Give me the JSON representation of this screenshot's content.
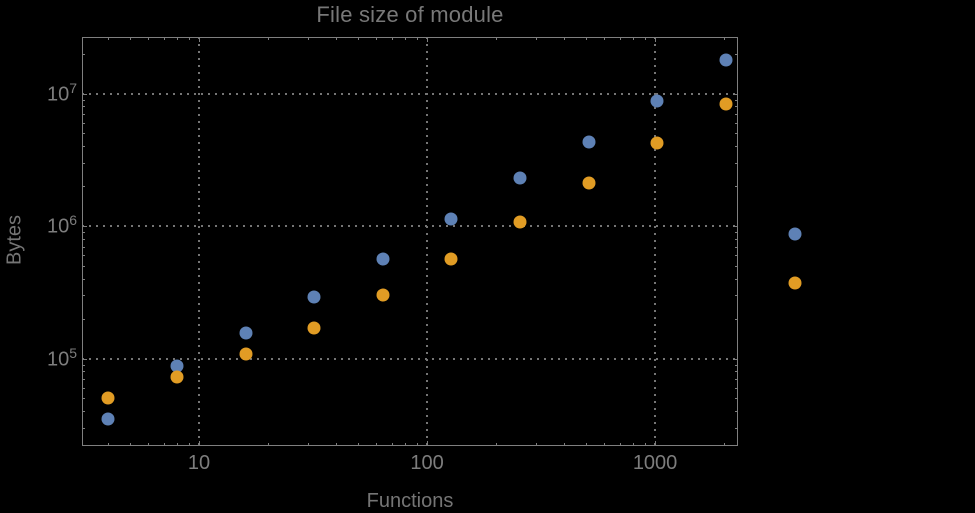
{
  "chart_data": {
    "type": "scatter",
    "title": "File size of module",
    "xlabel": "Functions",
    "ylabel": "Bytes",
    "x_scale": "log",
    "y_scale": "log",
    "xlim": [
      3.07,
      2310
    ],
    "ylim": [
      21900,
      26700000
    ],
    "x_major_ticks": [
      10,
      100,
      1000
    ],
    "x_tick_labels": [
      "10",
      "100",
      "1000"
    ],
    "y_major_ticks": [
      100000,
      1000000,
      10000000
    ],
    "y_tick_labels": [
      "10^5",
      "10^6",
      "10^7"
    ],
    "grid": "dotted lines at major ticks, both axes",
    "legend_position": "none",
    "x": [
      4,
      8,
      16,
      32,
      64,
      128,
      256,
      512,
      1024,
      2048,
      4096
    ],
    "series": [
      {
        "name": "series-1-blue",
        "color": "#5E81B5",
        "values": [
          35000,
          88000,
          155000,
          290000,
          560000,
          1130000,
          2300000,
          4300000,
          8800000,
          18000000,
          870000
        ]
      },
      {
        "name": "series-2-orange",
        "color": "#E19C24",
        "values": [
          50000,
          72000,
          108000,
          170000,
          300000,
          560000,
          1070000,
          2100000,
          4200000,
          8400000,
          370000
        ]
      }
    ]
  },
  "colors": {
    "background": "#000000",
    "frame": "#7f7f7f",
    "grid": "#757575",
    "tick_label": "#7d7d7d",
    "title": "#787878",
    "axis_label": "#757575"
  }
}
